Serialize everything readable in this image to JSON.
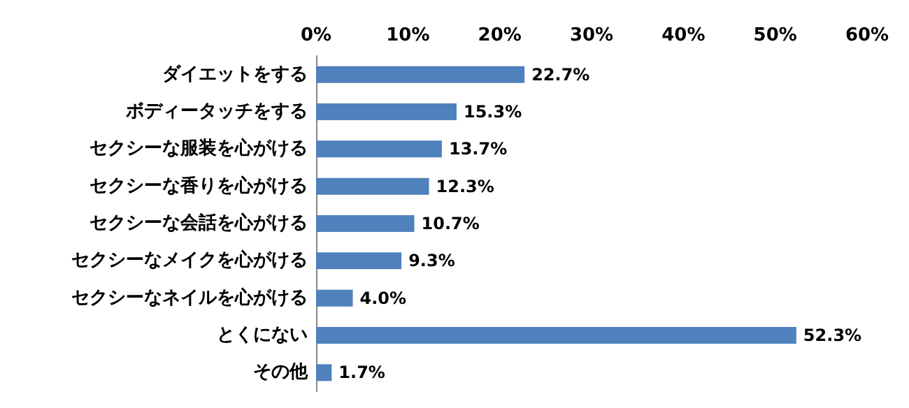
{
  "chart_data": {
    "type": "bar",
    "orientation": "horizontal",
    "categories": [
      "ダイエットをする",
      "ボディータッチをする",
      "セクシーな服装を心がける",
      "セクシーな香りを心がける",
      "セクシーな会話を心がける",
      "セクシーなメイクを心がける",
      "セクシーなネイルを心がける",
      "とくにない",
      "その他"
    ],
    "values": [
      22.7,
      15.3,
      13.7,
      12.3,
      10.7,
      9.3,
      4.0,
      52.3,
      1.7
    ],
    "value_labels": [
      "22.7%",
      "15.3%",
      "13.7%",
      "12.3%",
      "10.7%",
      "9.3%",
      "4.0%",
      "52.3%",
      "1.7%"
    ],
    "color": "#4f81bd",
    "xlim": [
      0,
      60
    ],
    "xticks": [
      {
        "value": 0,
        "label": "0%"
      },
      {
        "value": 10,
        "label": "10%"
      },
      {
        "value": 20,
        "label": "20%"
      },
      {
        "value": 30,
        "label": "30%"
      },
      {
        "value": 40,
        "label": "40%"
      },
      {
        "value": 50,
        "label": "50%"
      },
      {
        "value": 60,
        "label": "60%"
      }
    ],
    "grid": false
  }
}
